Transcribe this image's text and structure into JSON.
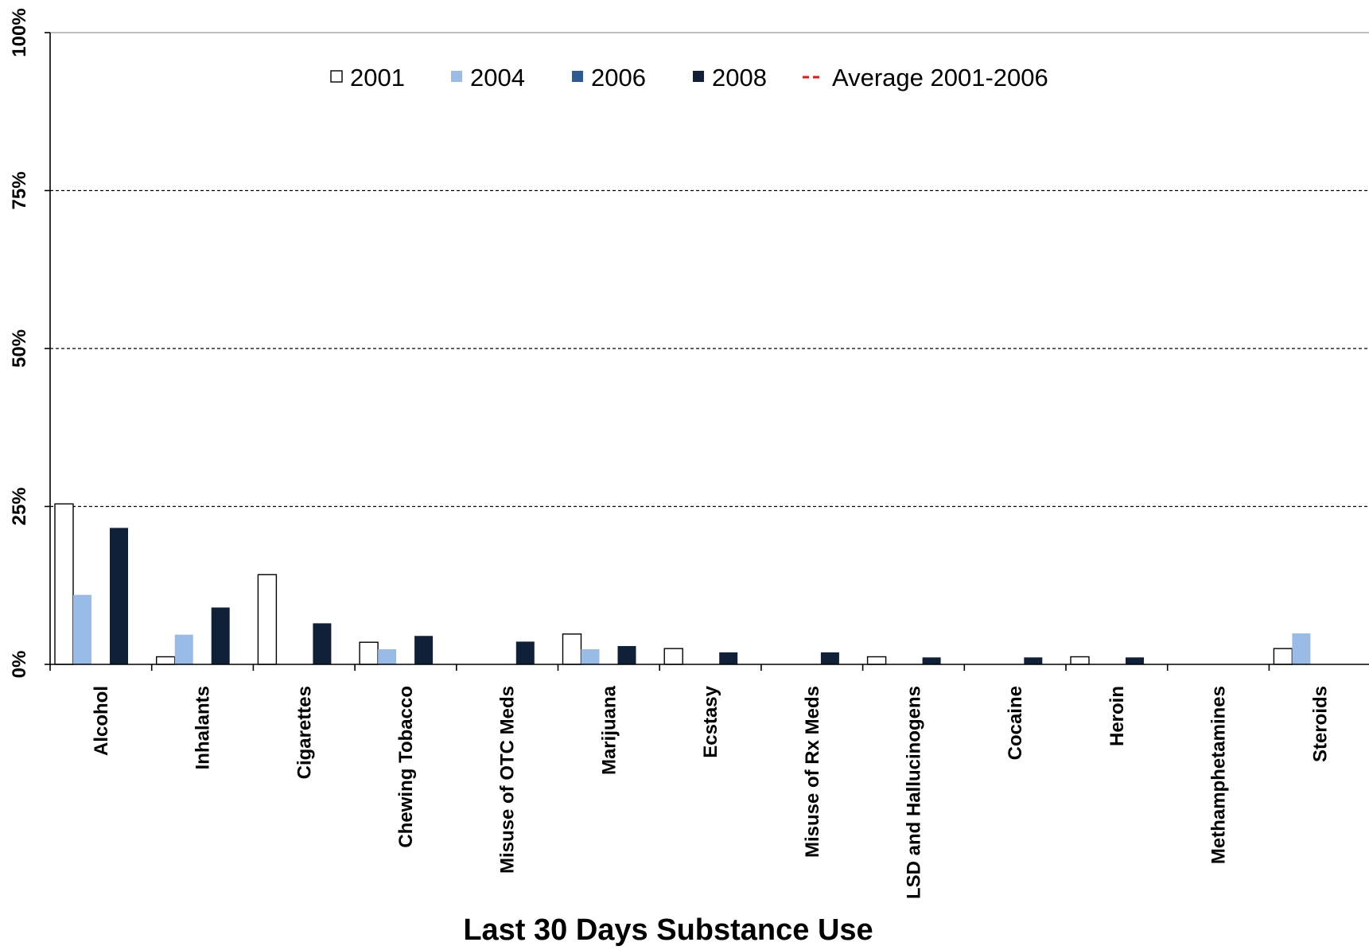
{
  "chart_data": {
    "type": "bar",
    "title": "",
    "xlabel": "Last 30 Days Substance Use",
    "ylabel": "",
    "ylim": [
      0,
      100
    ],
    "y_ticks": [
      "0%",
      "25%",
      "50%",
      "75%",
      "100%"
    ],
    "grid": "horizontal dashed at 25% intervals",
    "legend_position": "top",
    "categories": [
      "Alcohol",
      "Inhalants",
      "Cigarettes",
      "Chewing Tobacco",
      "Misuse of OTC Meds",
      "Marijuana",
      "Ecstasy",
      "Misuse of Rx Meds",
      "LSD and Hallucinogens",
      "Cocaine",
      "Heroin",
      "Methamphetamines",
      "Steroids"
    ],
    "series": [
      {
        "name": "2001",
        "color": "#ffffff",
        "values": [
          25.4,
          1.2,
          14.2,
          3.5,
          0,
          4.8,
          2.5,
          0,
          1.2,
          0,
          1.2,
          0,
          2.5
        ]
      },
      {
        "name": "2004",
        "color": "#99bbe5",
        "values": [
          11.0,
          4.7,
          0,
          2.4,
          0,
          2.4,
          0,
          0,
          0,
          0,
          0,
          0,
          4.9
        ]
      },
      {
        "name": "2006",
        "color": "#2c5a93",
        "values": [
          0,
          0,
          0,
          0,
          0,
          0,
          0,
          0,
          0,
          0,
          0,
          0,
          0
        ]
      },
      {
        "name": "2008",
        "color": "#0f2038",
        "values": [
          21.6,
          9.0,
          6.5,
          4.5,
          3.6,
          2.9,
          1.9,
          1.9,
          1.1,
          1.1,
          1.1,
          0,
          0
        ]
      }
    ],
    "average_line": {
      "name": "Average 2001-2006",
      "color": "#ee1111",
      "values": []
    }
  }
}
